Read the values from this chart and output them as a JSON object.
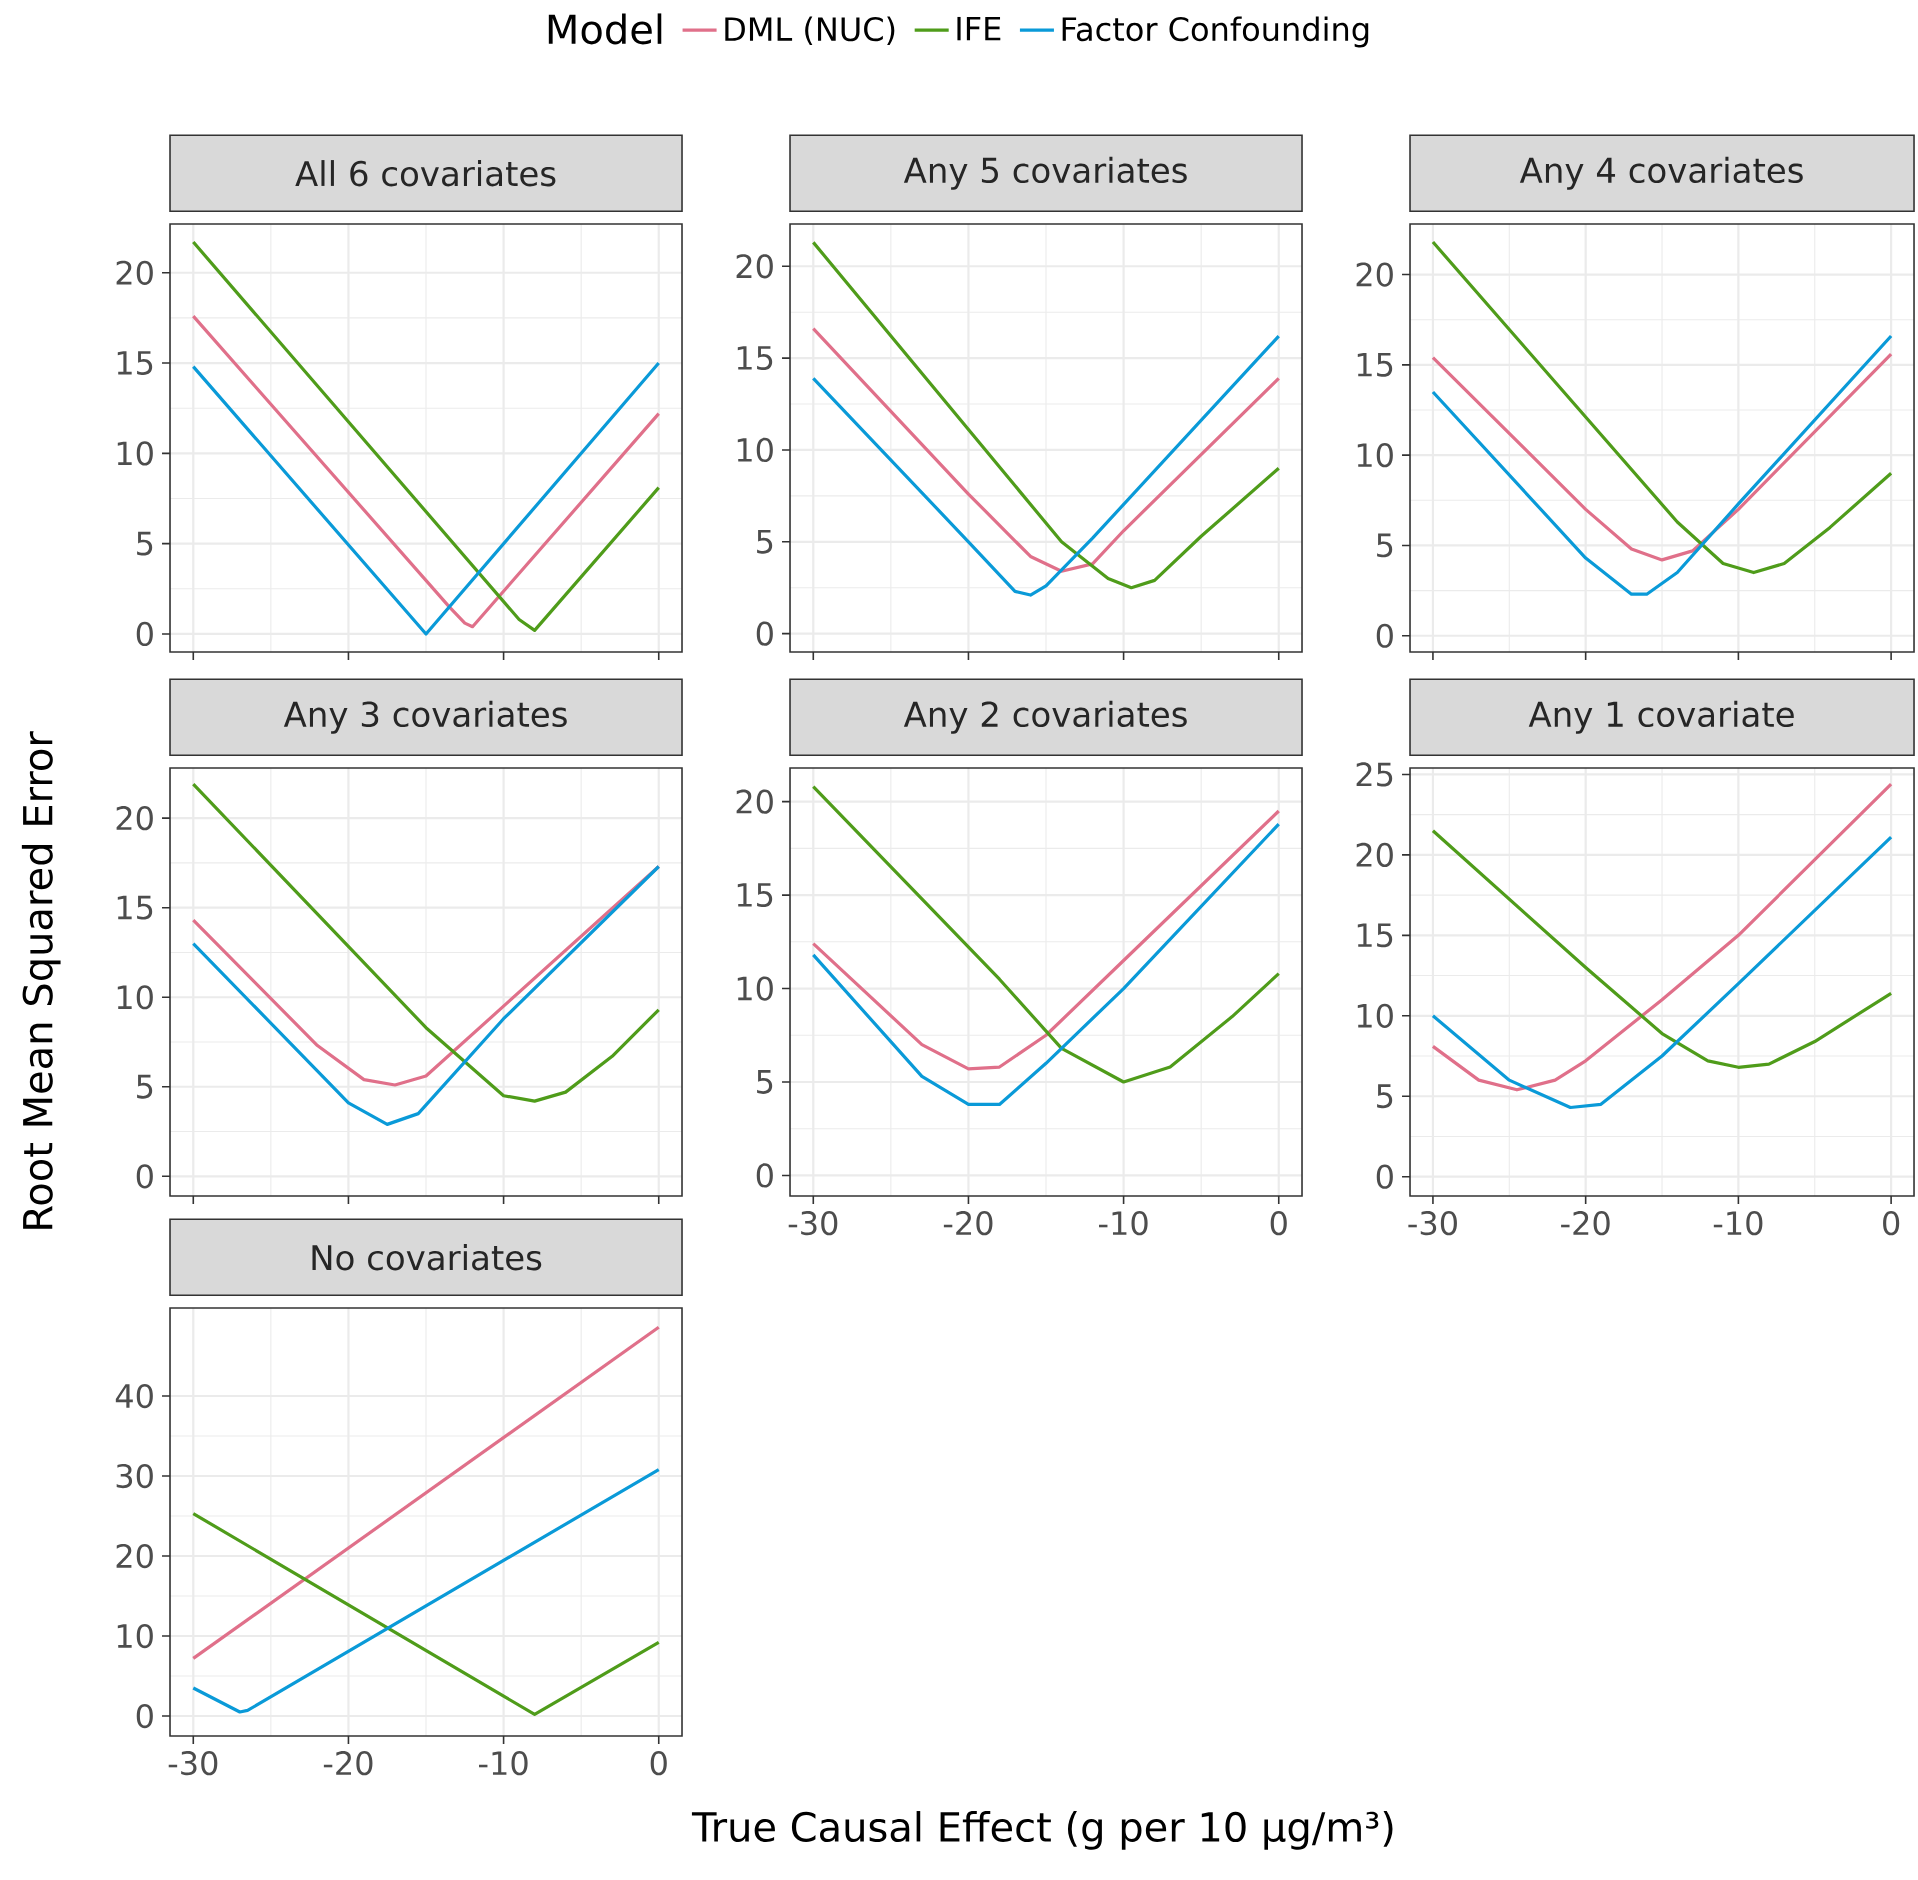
{
  "chart_data": [
    {
      "type": "line",
      "title": "All 6 covariates",
      "ylabel": null,
      "legend_title": "Model",
      "legend": "top",
      "grid": true,
      "marker": "none",
      "line_style": "solid",
      "tick_labels": "y",
      "xlim": [
        -31.5,
        1.5
      ],
      "ylim": [
        -1,
        22.7
      ],
      "xticks": [
        -30,
        -20,
        -10,
        0
      ],
      "yticks": [
        0,
        5,
        10,
        15,
        20
      ],
      "series": [
        {
          "name": "DML (NUC)",
          "color": "#e0708a",
          "x": [
            -30,
            -13.5,
            -12.5,
            -12,
            0
          ],
          "values": [
            17.6,
            1.5,
            0.6,
            0.4,
            12.2
          ]
        },
        {
          "name": "IFE",
          "color": "#4f9c1a",
          "x": [
            -30,
            -9,
            -8,
            0
          ],
          "values": [
            21.7,
            0.8,
            0.2,
            8.1
          ]
        },
        {
          "name": "Factor Confounding",
          "color": "#0a9ad8",
          "x": [
            -30,
            -15,
            0
          ],
          "values": [
            14.8,
            0,
            15
          ]
        }
      ]
    },
    {
      "type": "line",
      "title": "Any 5 covariates",
      "grid": true,
      "marker": "none",
      "line_style": "solid",
      "tick_labels": "y",
      "xlim": [
        -31.5,
        1.5
      ],
      "ylim": [
        -1,
        22.3
      ],
      "xticks": [
        -30,
        -20,
        -10,
        0
      ],
      "yticks": [
        0,
        5,
        10,
        15,
        20
      ],
      "series": [
        {
          "color": "#e0708a",
          "x": [
            -30,
            -20,
            -16,
            -14,
            -12,
            -10,
            0
          ],
          "values": [
            16.6,
            7.6,
            4.2,
            3.4,
            3.8,
            5.6,
            13.9
          ]
        },
        {
          "color": "#4f9c1a",
          "x": [
            -30,
            -14,
            -11,
            -9.5,
            -8,
            -5,
            0
          ],
          "values": [
            21.3,
            5,
            3,
            2.5,
            2.9,
            5.3,
            9
          ]
        },
        {
          "color": "#0a9ad8",
          "x": [
            -30,
            -20,
            -17,
            -16,
            -15,
            -12,
            0
          ],
          "values": [
            13.9,
            5,
            2.3,
            2.1,
            2.6,
            5.2,
            16.2
          ]
        }
      ]
    },
    {
      "type": "line",
      "title": "Any 4 covariates",
      "grid": true,
      "marker": "none",
      "line_style": "solid",
      "tick_labels": "y",
      "xlim": [
        -31.5,
        1.5
      ],
      "ylim": [
        -0.9,
        22.8
      ],
      "xticks": [
        -30,
        -20,
        -10,
        0
      ],
      "yticks": [
        0,
        5,
        10,
        15,
        20
      ],
      "series": [
        {
          "color": "#e0708a",
          "x": [
            -30,
            -20,
            -17,
            -15,
            -13,
            -10,
            0
          ],
          "values": [
            15.4,
            7,
            4.8,
            4.2,
            4.7,
            7,
            15.6
          ]
        },
        {
          "color": "#4f9c1a",
          "x": [
            -30,
            -14,
            -11,
            -9,
            -7,
            -4,
            0
          ],
          "values": [
            21.8,
            6.3,
            4,
            3.5,
            4,
            6,
            9
          ]
        },
        {
          "color": "#0a9ad8",
          "x": [
            -30,
            -20,
            -17,
            -16,
            -14,
            -10,
            0
          ],
          "values": [
            13.5,
            4.3,
            2.3,
            2.3,
            3.5,
            7.3,
            16.6
          ]
        }
      ]
    },
    {
      "type": "line",
      "title": "Any 3 covariates",
      "ylabel": "Root Mean Squared Error",
      "grid": true,
      "marker": "none",
      "line_style": "solid",
      "tick_labels": "y",
      "xlim": [
        -31.5,
        1.5
      ],
      "ylim": [
        -1.1,
        22.8
      ],
      "xticks": [
        -30,
        -20,
        -10,
        0
      ],
      "yticks": [
        0,
        5,
        10,
        15,
        20
      ],
      "series": [
        {
          "color": "#e0708a",
          "x": [
            -30,
            -22,
            -19,
            -17,
            -15,
            -10,
            0
          ],
          "values": [
            14.3,
            7.3,
            5.4,
            5.1,
            5.6,
            9.5,
            17.3
          ]
        },
        {
          "color": "#4f9c1a",
          "x": [
            -30,
            -15,
            -10,
            -8,
            -6,
            -3,
            0
          ],
          "values": [
            21.9,
            8.3,
            4.5,
            4.2,
            4.7,
            6.7,
            9.3
          ]
        },
        {
          "color": "#0a9ad8",
          "x": [
            -30,
            -20,
            -17.5,
            -15.5,
            -10,
            0
          ],
          "values": [
            13,
            4.1,
            2.9,
            3.5,
            8.8,
            17.3
          ]
        }
      ]
    },
    {
      "type": "line",
      "title": "Any 2 covariates",
      "grid": true,
      "marker": "none",
      "line_style": "solid",
      "xlim": [
        -31.5,
        1.5
      ],
      "ylim": [
        -1.1,
        21.8
      ],
      "xticks": [
        -30,
        -20,
        -10,
        0
      ],
      "yticks": [
        0,
        5,
        10,
        15,
        20
      ],
      "series": [
        {
          "color": "#e0708a",
          "x": [
            -30,
            -23,
            -20,
            -18,
            -15,
            -10,
            0
          ],
          "values": [
            12.4,
            7,
            5.7,
            5.8,
            7.5,
            11.5,
            19.5
          ]
        },
        {
          "color": "#4f9c1a",
          "x": [
            -30,
            -18,
            -14,
            -10,
            -7,
            -3,
            0
          ],
          "values": [
            20.8,
            10.5,
            6.8,
            5,
            5.8,
            8.5,
            10.8
          ]
        },
        {
          "color": "#0a9ad8",
          "x": [
            -30,
            -23,
            -20,
            -18,
            -15,
            -10,
            0
          ],
          "values": [
            11.8,
            5.3,
            3.8,
            3.8,
            6,
            10,
            18.8
          ]
        }
      ]
    },
    {
      "type": "line",
      "title": "Any 1 covariate",
      "grid": true,
      "marker": "none",
      "line_style": "solid",
      "xlim": [
        -31.5,
        1.5
      ],
      "ylim": [
        -1.2,
        25.4
      ],
      "xticks": [
        -30,
        -20,
        -10,
        0
      ],
      "yticks": [
        0,
        5,
        10,
        15,
        20,
        25
      ],
      "series": [
        {
          "color": "#e0708a",
          "x": [
            -30,
            -27,
            -24.5,
            -22,
            -20,
            -15,
            -10,
            0
          ],
          "values": [
            8.1,
            6,
            5.4,
            6,
            7.2,
            11,
            15,
            24.4
          ]
        },
        {
          "color": "#4f9c1a",
          "x": [
            -30,
            -20,
            -15,
            -12,
            -10,
            -8,
            -5,
            0
          ],
          "values": [
            21.5,
            13,
            8.9,
            7.2,
            6.8,
            7,
            8.4,
            11.4
          ]
        },
        {
          "color": "#0a9ad8",
          "x": [
            -30,
            -25,
            -21,
            -19,
            -15,
            -10,
            0
          ],
          "values": [
            10,
            6,
            4.3,
            4.5,
            7.5,
            12,
            21.1
          ]
        }
      ]
    },
    {
      "type": "line",
      "title": "No covariates",
      "xlabel": "True Causal Effect (g per 10 µg/m³)",
      "grid": true,
      "marker": "none",
      "line_style": "solid",
      "xlim": [
        -31.5,
        1.5
      ],
      "ylim": [
        -2.5,
        51
      ],
      "xticks": [
        -30,
        -20,
        -10,
        0
      ],
      "yticks": [
        0,
        10,
        20,
        30,
        40
      ],
      "series": [
        {
          "color": "#e0708a",
          "x": [
            -30,
            0
          ],
          "values": [
            7.2,
            48.6
          ]
        },
        {
          "color": "#4f9c1a",
          "x": [
            -30,
            -8,
            0
          ],
          "values": [
            25.3,
            0.2,
            9.2
          ]
        },
        {
          "color": "#0a9ad8",
          "x": [
            -30,
            -27,
            -26.5,
            0
          ],
          "values": [
            3.5,
            0.5,
            0.7,
            30.8
          ]
        }
      ]
    }
  ]
}
